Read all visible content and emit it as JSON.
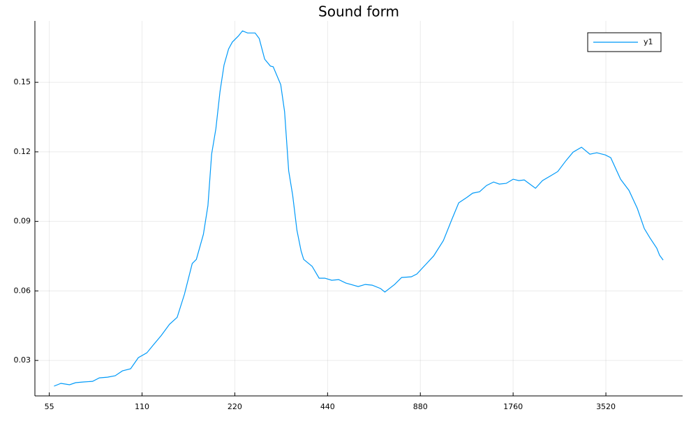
{
  "chart_data": {
    "type": "line",
    "title": "Sound form",
    "xscale": "log2",
    "grid": true,
    "legend": "top-right",
    "xlim": [
      49.4,
      6245
    ],
    "xticks": [
      55,
      110,
      220,
      440,
      880,
      1760,
      3520
    ],
    "ylim": [
      0.0147,
      0.1765
    ],
    "yticks": [
      0.03,
      0.06,
      0.09,
      0.12,
      0.15
    ],
    "series": [
      {
        "name": "y1",
        "color": "#009af9",
        "x": [
          57,
          60,
          64,
          67,
          71,
          76,
          80,
          85,
          90,
          95,
          101,
          107,
          114,
          120,
          127,
          135,
          143,
          151,
          160,
          165,
          174,
          180,
          185,
          191,
          197,
          203,
          210,
          216,
          226,
          233,
          242,
          256,
          264,
          275,
          287,
          293,
          310,
          319,
          329,
          339,
          350,
          361,
          368,
          392,
          413,
          431,
          454,
          478,
          504,
          553,
          583,
          614,
          654,
          675,
          726,
          765,
          822,
          857,
          913,
          972,
          1045,
          1113,
          1172,
          1248,
          1301,
          1370,
          1443,
          1521,
          1587,
          1671,
          1760,
          1836,
          1913,
          2080,
          2191,
          2332,
          2457,
          2615,
          2756,
          2934,
          3122,
          3289,
          3500,
          3650,
          3928,
          4182,
          4453,
          4689,
          4889,
          5150,
          5259,
          5400
        ],
        "values": [
          0.0189,
          0.0201,
          0.0195,
          0.0204,
          0.0207,
          0.021,
          0.0225,
          0.0228,
          0.0234,
          0.0255,
          0.0264,
          0.0312,
          0.0333,
          0.0369,
          0.0408,
          0.0456,
          0.0486,
          0.0586,
          0.0718,
          0.0736,
          0.0844,
          0.0968,
          0.119,
          0.13,
          0.146,
          0.1575,
          0.1644,
          0.1674,
          0.17,
          0.1722,
          0.1713,
          0.1713,
          0.1689,
          0.16,
          0.157,
          0.1567,
          0.149,
          0.1374,
          0.1118,
          0.1013,
          0.0862,
          0.0772,
          0.0736,
          0.0706,
          0.0655,
          0.0655,
          0.0646,
          0.0649,
          0.0634,
          0.0619,
          0.0628,
          0.0625,
          0.061,
          0.0595,
          0.0628,
          0.0658,
          0.0661,
          0.0673,
          0.0712,
          0.0751,
          0.0817,
          0.0908,
          0.098,
          0.1004,
          0.1022,
          0.1028,
          0.1055,
          0.107,
          0.1061,
          0.1064,
          0.1082,
          0.1076,
          0.1079,
          0.1043,
          0.1076,
          0.1097,
          0.1115,
          0.1163,
          0.1199,
          0.122,
          0.119,
          0.1196,
          0.1187,
          0.1175,
          0.1082,
          0.1034,
          0.0956,
          0.0869,
          0.0829,
          0.0784,
          0.0754,
          0.0733
        ]
      }
    ]
  }
}
